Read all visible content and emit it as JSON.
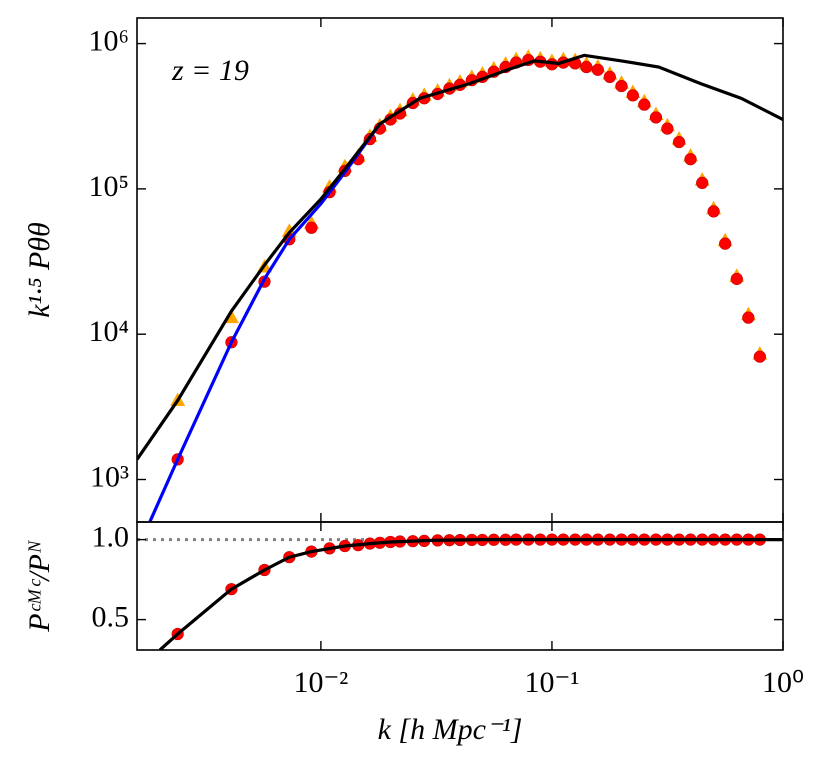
{
  "chart_data": [
    {
      "type": "line",
      "log_x": true,
      "log_y": true,
      "ylabel": "k¹·⁵ Pθθ",
      "annotation": "z = 19",
      "xlim": [
        0.0016,
        1
      ],
      "ylim": [
        510,
        1500000
      ],
      "yticks": [
        {
          "value": 1000,
          "label": "10³"
        },
        {
          "value": 10000,
          "label": "10⁴"
        },
        {
          "value": 100000,
          "label": "10⁵"
        },
        {
          "value": 1000000,
          "label": "10⁶"
        }
      ],
      "series": [
        {
          "kind": "scatter",
          "marker": "triangle",
          "color": "#ffa500",
          "x": [
            0.0024,
            0.0041,
            0.0057,
            0.0073,
            0.0091,
            0.0109,
            0.0127,
            0.0145,
            0.0163,
            0.018,
            0.02,
            0.022,
            0.025,
            0.028,
            0.032,
            0.036,
            0.04,
            0.045,
            0.05,
            0.056,
            0.063,
            0.07,
            0.079,
            0.089,
            0.1,
            0.112,
            0.126,
            0.141,
            0.158,
            0.178,
            0.2,
            0.224,
            0.251,
            0.282,
            0.316,
            0.355,
            0.398,
            0.447,
            0.501,
            0.562,
            0.631,
            0.708,
            0.794
          ],
          "values": [
            3500,
            13000,
            29000,
            51000,
            58000,
            103000,
            142000,
            168000,
            230000,
            272000,
            314000,
            346000,
            408000,
            440000,
            471000,
            513000,
            544000,
            586000,
            618000,
            670000,
            722000,
            775000,
            806000,
            785000,
            754000,
            775000,
            764000,
            722000,
            691000,
            618000,
            534000,
            461000,
            398000,
            325000,
            272000,
            220000,
            168000,
            115000,
            73000,
            44000,
            25000,
            13600,
            7300
          ]
        },
        {
          "kind": "scatter",
          "marker": "circle",
          "color": "#ff0000",
          "x": [
            0.0024,
            0.0041,
            0.0057,
            0.0073,
            0.0091,
            0.0109,
            0.0127,
            0.0145,
            0.0163,
            0.018,
            0.02,
            0.022,
            0.025,
            0.028,
            0.032,
            0.036,
            0.04,
            0.045,
            0.05,
            0.056,
            0.063,
            0.07,
            0.079,
            0.089,
            0.1,
            0.112,
            0.126,
            0.141,
            0.158,
            0.178,
            0.2,
            0.224,
            0.251,
            0.282,
            0.316,
            0.355,
            0.398,
            0.447,
            0.501,
            0.562,
            0.631,
            0.708,
            0.794
          ],
          "values": [
            1375,
            8800,
            23000,
            45000,
            54000,
            95000,
            133000,
            160000,
            220000,
            260000,
            300000,
            330000,
            390000,
            420000,
            450000,
            490000,
            520000,
            560000,
            590000,
            640000,
            690000,
            740000,
            770000,
            750000,
            720000,
            740000,
            730000,
            690000,
            660000,
            590000,
            510000,
            440000,
            380000,
            310000,
            260000,
            210000,
            160000,
            110000,
            70000,
            42000,
            24000,
            13000,
            7000
          ]
        },
        {
          "kind": "line",
          "color": "#0000ff",
          "x": [
            0.00182,
            0.0024,
            0.0041,
            0.0057,
            0.0073,
            0.01,
            0.0127,
            0.018
          ],
          "values": [
            513,
            1375,
            8800,
            24000,
            45000,
            79000,
            130000,
            280000
          ]
        },
        {
          "kind": "line",
          "color": "#000000",
          "x": [
            0.0016,
            0.0024,
            0.0041,
            0.0057,
            0.0073,
            0.01,
            0.0127,
            0.018,
            0.0268,
            0.044,
            0.066,
            0.084,
            0.107,
            0.138,
            0.2,
            0.29,
            0.44,
            0.66,
            1
          ],
          "values": [
            1375,
            3500,
            14400,
            29900,
            50000,
            85000,
            137000,
            280000,
            420000,
            530000,
            670000,
            760000,
            730000,
            830000,
            760000,
            690000,
            530000,
            420000,
            300000
          ]
        }
      ]
    },
    {
      "type": "line",
      "log_x": true,
      "log_y": false,
      "xlabel": "k [h Mpc⁻¹]",
      "ylabel": "Pᶜᴹᶜ/Pᴺ",
      "xlim": [
        0.0016,
        1
      ],
      "ylim": [
        0.31,
        1.11
      ],
      "reference_line": 1,
      "xticks": [
        {
          "value": 0.01,
          "label": "10⁻²"
        },
        {
          "value": 0.1,
          "label": "10⁻¹"
        },
        {
          "value": 1,
          "label": "10⁰"
        }
      ],
      "yticks": [
        0.5,
        {
          "value": 1,
          "label": "1.0"
        }
      ],
      "series": [
        {
          "kind": "scatter",
          "marker": "circle",
          "color": "#ff0000",
          "x": [
            0.0024,
            0.0041,
            0.0057,
            0.0073,
            0.0091,
            0.0109,
            0.0127,
            0.0145,
            0.0163,
            0.018,
            0.02,
            0.022,
            0.025,
            0.028,
            0.032,
            0.036,
            0.04,
            0.045,
            0.05,
            0.056,
            0.063,
            0.07,
            0.079,
            0.089,
            0.1,
            0.112,
            0.126,
            0.141,
            0.158,
            0.178,
            0.2,
            0.224,
            0.251,
            0.282,
            0.316,
            0.355,
            0.398,
            0.447,
            0.501,
            0.562,
            0.631,
            0.708,
            0.794
          ],
          "values": [
            0.41,
            0.69,
            0.81,
            0.89,
            0.925,
            0.945,
            0.96,
            0.965,
            0.975,
            0.98,
            0.985,
            0.988,
            0.99,
            0.992,
            0.995,
            0.996,
            0.997,
            0.998,
            0.998,
            0.999,
            0.999,
            1,
            1,
            1,
            1,
            1,
            1,
            1,
            1,
            1,
            1,
            1,
            1,
            1,
            1,
            1,
            1,
            1,
            1,
            1,
            1,
            1,
            1
          ]
        },
        {
          "kind": "line",
          "color": "#000000",
          "x": [
            0.00201,
            0.0024,
            0.0041,
            0.0057,
            0.0073,
            0.0091,
            0.0127,
            0.0163,
            0.02,
            0.03,
            0.05,
            0.1,
            1
          ],
          "values": [
            0.31,
            0.41,
            0.69,
            0.81,
            0.89,
            0.925,
            0.96,
            0.975,
            0.985,
            0.995,
            1,
            1,
            1
          ]
        }
      ]
    }
  ]
}
